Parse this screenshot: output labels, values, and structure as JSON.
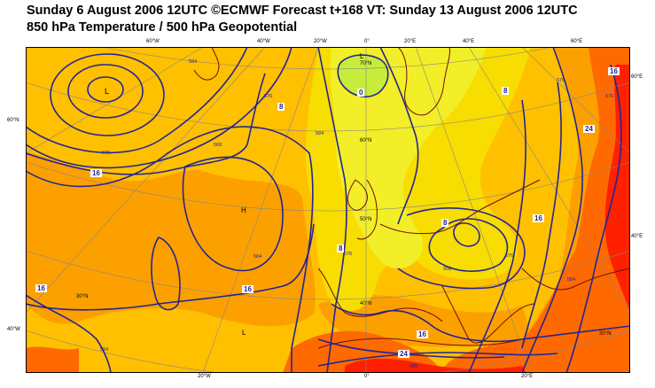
{
  "header": {
    "line1": "Sunday 6 August 2006 12UTC ©ECMWF Forecast t+168 VT: Sunday 13 August 2006 12UTC",
    "line2": "850 hPa Temperature / 500 hPa Geopotential"
  },
  "frame_labels": {
    "top": [
      "60°W",
      "40°W",
      "20°W",
      "0°",
      "20°E",
      "40°E",
      "60°E"
    ],
    "bottom": [
      "20°W",
      "0°",
      "20°E"
    ],
    "left": [
      "60°N",
      "40°W"
    ],
    "right": [
      "60°E",
      "40°E"
    ]
  },
  "grid_labels": [
    "70°N",
    "60°N",
    "50°N",
    "40°N",
    "30°N",
    "30°N"
  ],
  "pressure_centres": [
    {
      "id": "low-north",
      "label": "L"
    },
    {
      "id": "low-west",
      "label": "L"
    },
    {
      "id": "high-central",
      "label": "H"
    },
    {
      "id": "low-south",
      "label": "L"
    }
  ],
  "temperature_labels": [
    "0",
    "8",
    "16",
    "8",
    "8",
    "16",
    "16",
    "16",
    "16",
    "24",
    "24",
    "16",
    "8"
  ],
  "geopotential_labels": [
    "584",
    "576",
    "568",
    "576",
    "584",
    "576",
    "584",
    "568",
    "576",
    "584",
    "576",
    "576",
    "584",
    "588"
  ],
  "colors": {
    "temp_band_0_4": "#c8ec3a",
    "temp_band_4_8": "#f2ee28",
    "temp_band_8_12": "#f7dd00",
    "temp_band_12_16": "#ffc000",
    "temp_band_16_20": "#fca000",
    "temp_band_20_24": "#ff6a00",
    "temp_band_24_28": "#ff2000",
    "geopotential_contour": "#242494",
    "coastline": "#6b1010",
    "graticule": "#888888"
  }
}
